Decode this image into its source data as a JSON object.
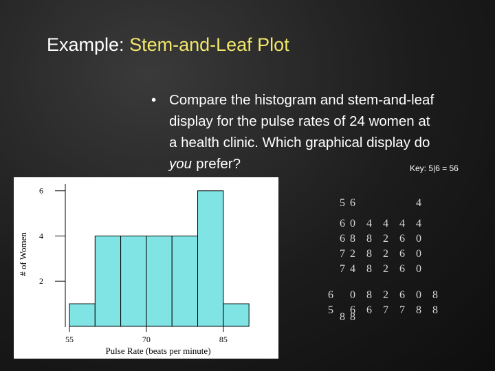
{
  "slide": {
    "title": {
      "lead": "Example:",
      "topic": "Stem-and-Leaf Plot"
    },
    "bullet": {
      "marker": "•",
      "lines": [
        "Compare the histogram and stem-and-leaf",
        "display for the pulse rates of 24 women at",
        "a health clinic. Which graphical display do"
      ],
      "last_line": {
        "emphasis": "you",
        "rest": "prefer?"
      }
    },
    "key": "Key: 5|6 = 56",
    "stem_leaf": {
      "rows": [
        [
          null,
          "5",
          "6",
          null,
          null,
          null,
          "4"
        ],
        [
          null,
          "6",
          "0",
          "4",
          "4",
          "4",
          "4"
        ],
        [
          null,
          "6",
          "8",
          "8",
          "2",
          "6",
          "0"
        ],
        [
          null,
          "7",
          "2",
          "8",
          "2",
          "6",
          "0"
        ],
        [
          null,
          "7",
          "4",
          "8",
          "2",
          "6",
          "0"
        ],
        [
          "6",
          null,
          "0",
          "8",
          "2",
          "6",
          "0",
          "8"
        ],
        [
          "5",
          null,
          "6",
          "6",
          "7",
          "7",
          "8",
          "8"
        ],
        [
          null,
          "8",
          "8"
        ]
      ]
    }
  },
  "chart_data": {
    "type": "histogram",
    "xlabel": "Pulse Rate (beats per minute)",
    "ylabel": "# of Women",
    "bins": [
      55,
      60,
      65,
      70,
      75,
      80,
      85,
      90
    ],
    "values": [
      1,
      4,
      4,
      4,
      4,
      6,
      1
    ],
    "color": "#80e4e4",
    "xlim": [
      54.2,
      94
    ],
    "ylim": [
      0,
      6.6
    ],
    "xticks": [
      55,
      70,
      85
    ],
    "yticks": [
      2,
      4,
      6
    ]
  }
}
